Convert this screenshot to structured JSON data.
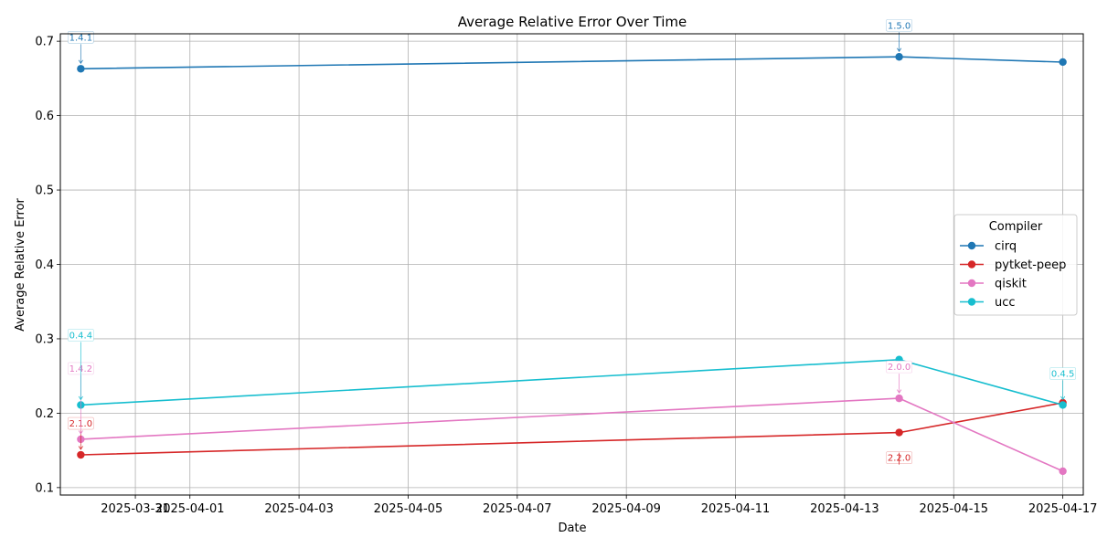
{
  "chart_data": {
    "type": "line",
    "title": "Average Relative Error Over Time",
    "xlabel": "Date",
    "ylabel": "Average Relative Error",
    "x_ticks": [
      "2025-03-31",
      "2025-04-01",
      "2025-04-03",
      "2025-04-05",
      "2025-04-07",
      "2025-04-09",
      "2025-04-11",
      "2025-04-13",
      "2025-04-15",
      "2025-04-17"
    ],
    "y_ticks": [
      "0.1",
      "0.2",
      "0.3",
      "0.4",
      "0.5",
      "0.6",
      "0.7"
    ],
    "xlim": [
      "2025-03-29T15:00",
      "2025-04-17T09:00"
    ],
    "ylim": [
      0.09,
      0.71
    ],
    "grid": true,
    "legend": {
      "title": "Compiler",
      "placement": "center-right"
    },
    "series": [
      {
        "name": "cirq",
        "color": "#1f77b4",
        "points": [
          {
            "x": "2025-03-30",
            "y": 0.663
          },
          {
            "x": "2025-04-14",
            "y": 0.679
          },
          {
            "x": "2025-04-17",
            "y": 0.672
          }
        ],
        "annotations": [
          {
            "x": "2025-03-30",
            "y": 0.663,
            "text": "1.4.1"
          },
          {
            "x": "2025-04-14",
            "y": 0.679,
            "text": "1.5.0"
          }
        ]
      },
      {
        "name": "pytket-peep",
        "color": "#d62728",
        "points": [
          {
            "x": "2025-03-30",
            "y": 0.144
          },
          {
            "x": "2025-04-14",
            "y": 0.174
          },
          {
            "x": "2025-04-17",
            "y": 0.214
          }
        ],
        "annotations": [
          {
            "x": "2025-03-30",
            "y": 0.144,
            "text": "2.1.0"
          },
          {
            "x": "2025-04-14",
            "y": 0.174,
            "text": "2.2.0"
          }
        ]
      },
      {
        "name": "qiskit",
        "color": "#e377c2",
        "points": [
          {
            "x": "2025-03-30",
            "y": 0.165
          },
          {
            "x": "2025-04-14",
            "y": 0.22
          },
          {
            "x": "2025-04-17",
            "y": 0.122
          }
        ],
        "annotations": [
          {
            "x": "2025-03-30",
            "y": 0.165,
            "text": "1.4.2"
          },
          {
            "x": "2025-04-14",
            "y": 0.22,
            "text": "2.0.0"
          }
        ]
      },
      {
        "name": "ucc",
        "color": "#17becf",
        "points": [
          {
            "x": "2025-03-30",
            "y": 0.211
          },
          {
            "x": "2025-04-14",
            "y": 0.272
          },
          {
            "x": "2025-04-17",
            "y": 0.211
          }
        ],
        "annotations": [
          {
            "x": "2025-03-30",
            "y": 0.211,
            "text": "0.4.4"
          },
          {
            "x": "2025-04-17",
            "y": 0.211,
            "text": "0.4.5"
          }
        ]
      }
    ]
  }
}
